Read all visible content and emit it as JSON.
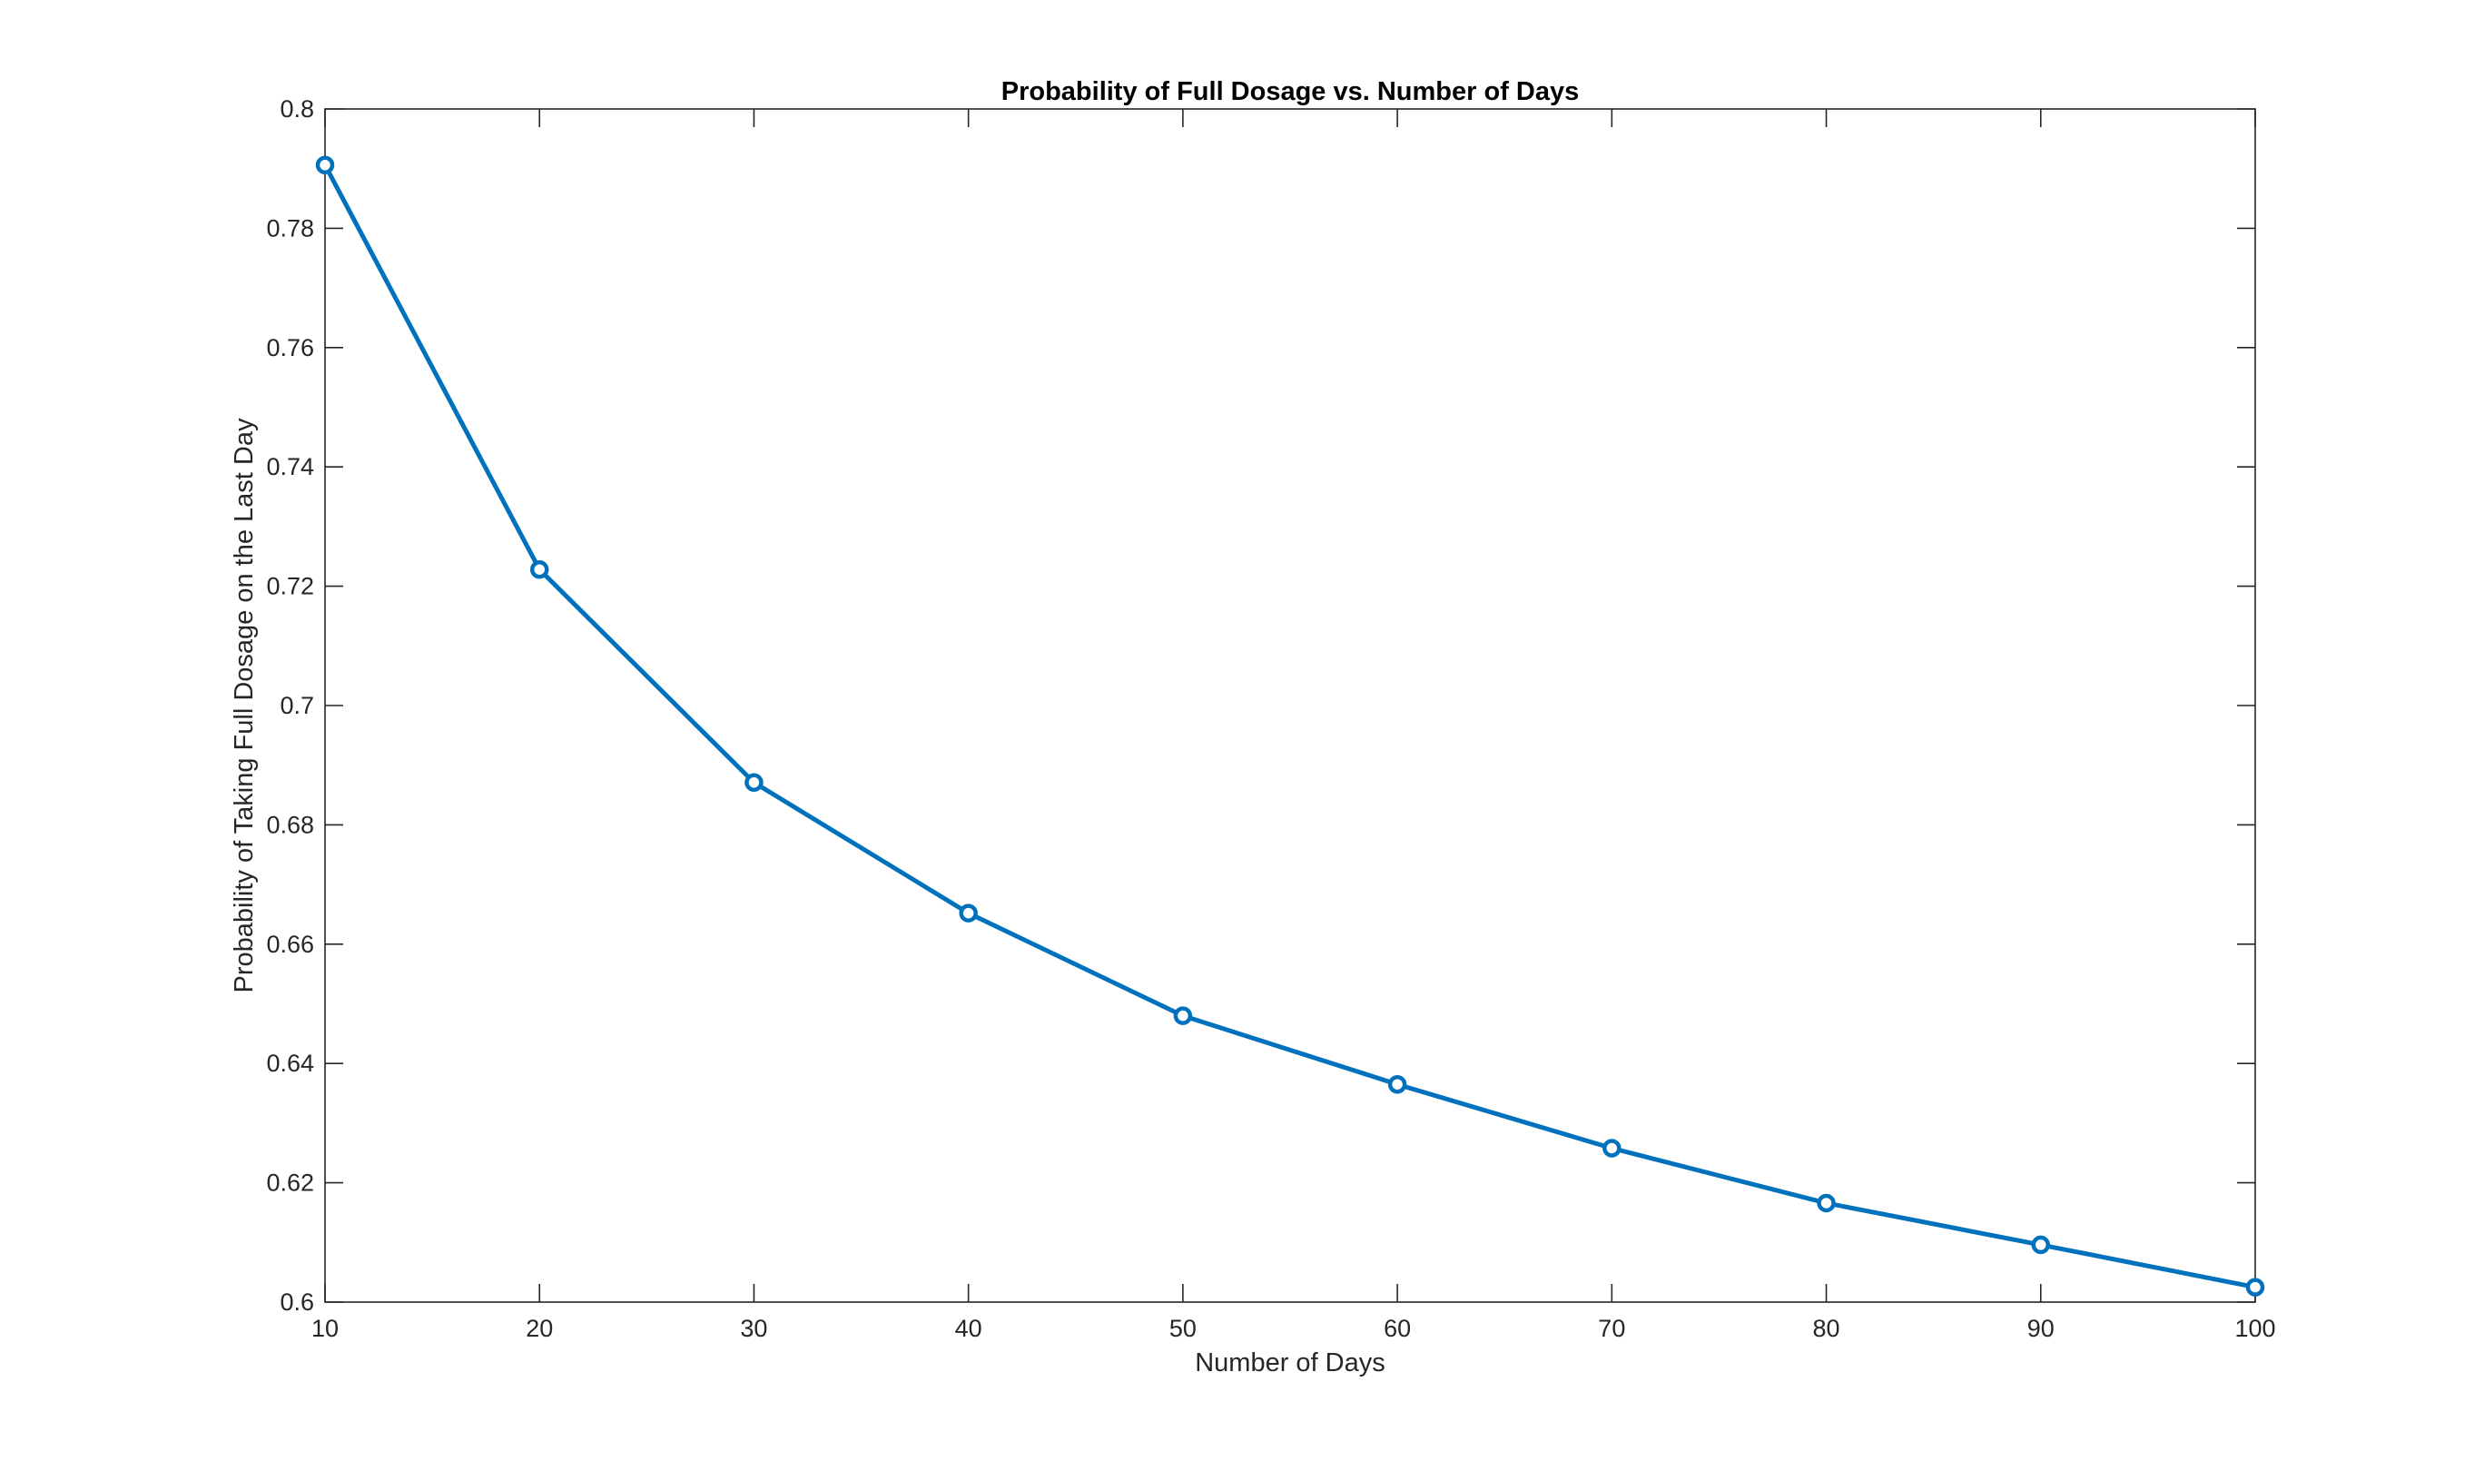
{
  "chart_data": {
    "type": "line",
    "title": "Probability of Full Dosage vs. Number of Days",
    "xlabel": "Number of Days",
    "ylabel": "Probability of Taking Full Dosage on the Last Day",
    "xlim": [
      10,
      100
    ],
    "ylim": [
      0.6,
      0.8
    ],
    "xticks": [
      10,
      20,
      30,
      40,
      50,
      60,
      70,
      80,
      90,
      100
    ],
    "xtick_labels": [
      "10",
      "20",
      "30",
      "40",
      "50",
      "60",
      "70",
      "80",
      "90",
      "100"
    ],
    "yticks": [
      0.6,
      0.62,
      0.64,
      0.66,
      0.68,
      0.7,
      0.72,
      0.74,
      0.76,
      0.78,
      0.8
    ],
    "ytick_labels": [
      "0.6",
      "0.62",
      "0.64",
      "0.66",
      "0.68",
      "0.7",
      "0.72",
      "0.74",
      "0.76",
      "0.78",
      "0.8"
    ],
    "grid": false,
    "box": true,
    "marker": "circle",
    "series": [
      {
        "color": "#0072BD",
        "x": [
          10,
          20,
          30,
          40,
          50,
          60,
          70,
          80,
          90,
          100
        ],
        "y": [
          0.7906,
          0.7228,
          0.6871,
          0.6652,
          0.648,
          0.6365,
          0.6258,
          0.6166,
          0.6096,
          0.6025
        ]
      }
    ]
  }
}
